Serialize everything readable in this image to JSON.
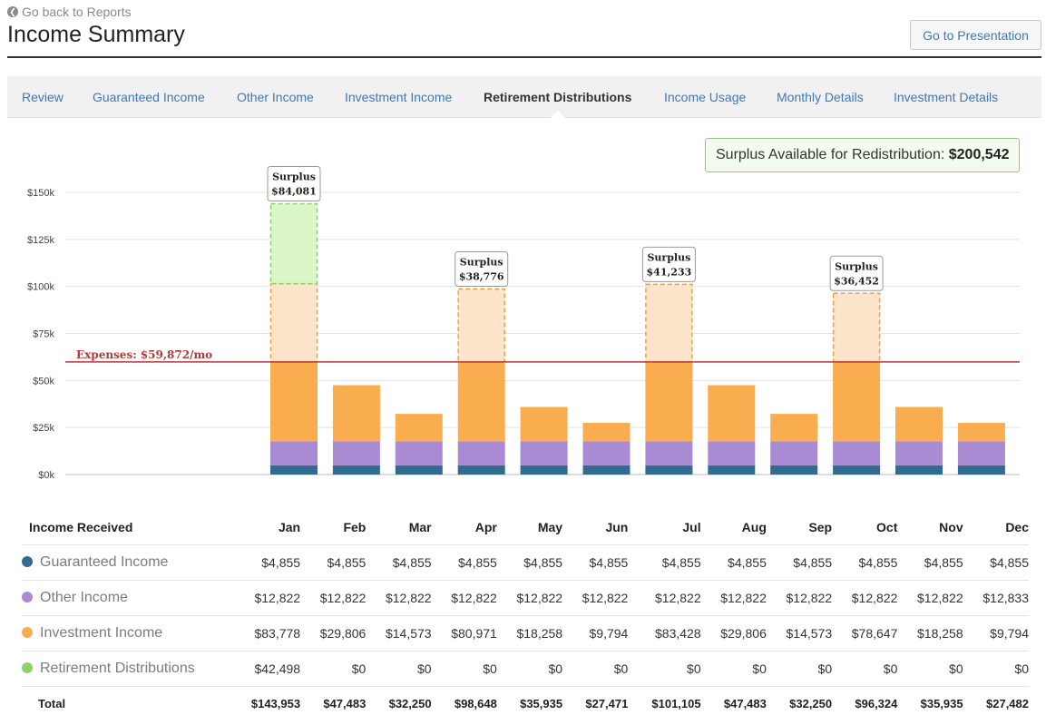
{
  "header": {
    "back_label": "Go back to Reports",
    "title": "Income Summary",
    "presentation_label": "Go to Presentation"
  },
  "tabs": [
    {
      "label": "Review",
      "active": false
    },
    {
      "label": "Guaranteed Income",
      "active": false
    },
    {
      "label": "Other Income",
      "active": false
    },
    {
      "label": "Investment Income",
      "active": false
    },
    {
      "label": "Retirement Distributions",
      "active": true
    },
    {
      "label": "Income Usage",
      "active": false
    },
    {
      "label": "Monthly Details",
      "active": false
    },
    {
      "label": "Investment Details",
      "active": false
    }
  ],
  "surplus_available": {
    "label": "Surplus Available for Redistribution:",
    "value": "$200,542"
  },
  "colors": {
    "guaranteed": "#336b8e",
    "other": "#a98bd4",
    "investment": "#f9ad4f",
    "retirement": "#8fd16a",
    "surplus_fill": "#fde5cc",
    "retirement_surplus_fill": "#dbf6c8",
    "expense_line": "#b03a3a"
  },
  "chart_data": {
    "type": "bar",
    "stacked": true,
    "categories": [
      "Jan",
      "Feb",
      "Mar",
      "Apr",
      "May",
      "Jun",
      "Jul",
      "Aug",
      "Sep",
      "Oct",
      "Nov",
      "Dec"
    ],
    "series": [
      {
        "name": "Guaranteed Income",
        "values": [
          4855,
          4855,
          4855,
          4855,
          4855,
          4855,
          4855,
          4855,
          4855,
          4855,
          4855,
          4855
        ]
      },
      {
        "name": "Other Income",
        "values": [
          12822,
          12822,
          12822,
          12822,
          12822,
          12822,
          12822,
          12822,
          12822,
          12822,
          12822,
          12833
        ]
      },
      {
        "name": "Investment Income",
        "values": [
          83778,
          29806,
          14573,
          80971,
          18258,
          9794,
          83428,
          29806,
          14573,
          78647,
          18258,
          9794
        ]
      },
      {
        "name": "Retirement Distributions",
        "values": [
          42498,
          0,
          0,
          0,
          0,
          0,
          0,
          0,
          0,
          0,
          0,
          0
        ]
      }
    ],
    "ylim": [
      0,
      150000
    ],
    "yticks": [
      0,
      25000,
      50000,
      75000,
      100000,
      125000,
      150000
    ],
    "ytick_labels": [
      "$0k",
      "$25k",
      "$50k",
      "$75k",
      "$100k",
      "$125k",
      "$150k"
    ],
    "expense_line": {
      "value": 59872,
      "label": "Expenses: $59,872/mo"
    },
    "surplus_callouts": [
      {
        "month": "Jan",
        "title": "Surplus",
        "value": "$84,081"
      },
      {
        "month": "Apr",
        "title": "Surplus",
        "value": "$38,776"
      },
      {
        "month": "Jul",
        "title": "Surplus",
        "value": "$41,233"
      },
      {
        "month": "Oct",
        "title": "Surplus",
        "value": "$36,452"
      }
    ],
    "grid": true
  },
  "table": {
    "header_label": "Income Received",
    "months": [
      "Jan",
      "Feb",
      "Mar",
      "Apr",
      "May",
      "Jun",
      "Jul",
      "Aug",
      "Sep",
      "Oct",
      "Nov",
      "Dec"
    ],
    "rows": [
      {
        "label": "Guaranteed Income",
        "color": "#336b8e",
        "values": [
          "$4,855",
          "$4,855",
          "$4,855",
          "$4,855",
          "$4,855",
          "$4,855",
          "$4,855",
          "$4,855",
          "$4,855",
          "$4,855",
          "$4,855",
          "$4,855"
        ]
      },
      {
        "label": "Other Income",
        "color": "#a98bd4",
        "values": [
          "$12,822",
          "$12,822",
          "$12,822",
          "$12,822",
          "$12,822",
          "$12,822",
          "$12,822",
          "$12,822",
          "$12,822",
          "$12,822",
          "$12,822",
          "$12,833"
        ]
      },
      {
        "label": "Investment Income",
        "color": "#f9ad4f",
        "values": [
          "$83,778",
          "$29,806",
          "$14,573",
          "$80,971",
          "$18,258",
          "$9,794",
          "$83,428",
          "$29,806",
          "$14,573",
          "$78,647",
          "$18,258",
          "$9,794"
        ]
      },
      {
        "label": "Retirement Distributions",
        "color": "#8fd16a",
        "values": [
          "$42,498",
          "$0",
          "$0",
          "$0",
          "$0",
          "$0",
          "$0",
          "$0",
          "$0",
          "$0",
          "$0",
          "$0"
        ]
      }
    ],
    "total": {
      "label": "Total",
      "values": [
        "$143,953",
        "$47,483",
        "$32,250",
        "$98,648",
        "$35,935",
        "$27,471",
        "$101,105",
        "$47,483",
        "$32,250",
        "$96,324",
        "$35,935",
        "$27,482"
      ]
    }
  }
}
